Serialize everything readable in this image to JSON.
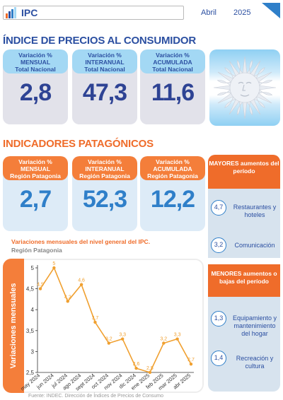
{
  "header": {
    "title": "IPC",
    "month": "Abril",
    "year": "2025"
  },
  "national": {
    "heading": "ÍNDICE DE PRECIOS AL CONSUMIDOR",
    "cards": [
      {
        "line1": "Variación %",
        "line2": "MENSUAL",
        "line3": "Total Nacional",
        "value": "2,8"
      },
      {
        "line1": "Variación %",
        "line2": "INTERANUAL",
        "line3": "Total Nacional",
        "value": "47,3"
      },
      {
        "line1": "Variación %",
        "line2": "ACUMULADA",
        "line3": "Total Nacional",
        "value": "11,6"
      }
    ]
  },
  "patagonia": {
    "heading": "INDICADORES PATAGÓNICOS",
    "cards": [
      {
        "line1": "Variación %",
        "line2": "MENSUAL",
        "line3": "Región Patagonia",
        "value": "2,7"
      },
      {
        "line1": "Variación %",
        "line2": "INTERANUAL",
        "line3": "Región Patagonia",
        "value": "52,3"
      },
      {
        "line1": "Variación %",
        "line2": "ACUMULADA",
        "line3": "Región Patagonia",
        "value": "12,2"
      }
    ]
  },
  "mayores": {
    "title": "MAYORES aumentos del período",
    "items": [
      {
        "value": "4,7",
        "label": "Restaurantes y hoteles"
      },
      {
        "value": "3,2",
        "label": "Comunicación"
      }
    ]
  },
  "menores": {
    "title": "MENORES aumentos o bajas del período",
    "items": [
      {
        "value": "1,3",
        "label": "Equipamiento y mantenimiento del hogar"
      },
      {
        "value": "1,4",
        "label": "Recreación y cultura"
      }
    ]
  },
  "colors": {
    "blue": "#2b4fa1",
    "orange": "#ef6c2a",
    "line": "#f0a030"
  },
  "chart_data": {
    "type": "line",
    "title": "Variaciones mensuales del nivel general del IPC.",
    "subtitle": "Región Patagonia",
    "ylabel": "Variaciones mensuales",
    "ylim": [
      2.5,
      5
    ],
    "yticks": [
      "2,5",
      "3",
      "3,5",
      "4",
      "4,5",
      "5"
    ],
    "categories": [
      "may 2024",
      "jun 2024",
      "jul 2024",
      "ago 2024",
      "sept 2024",
      "oct 2024",
      "nov 2024",
      "dic 2024",
      "ene 2025",
      "feb 2025",
      "mar 2025",
      "abr 2025"
    ],
    "values": [
      4.5,
      5.0,
      4.2,
      4.6,
      3.7,
      3.2,
      3.3,
      2.6,
      2.5,
      3.2,
      3.3,
      2.7
    ],
    "value_labels": [
      "4,5",
      "5",
      "4,2",
      "4,6",
      "3,7",
      "3,2",
      "3,3",
      "2,6",
      "2,5",
      "3,2",
      "3,3",
      "2,7"
    ],
    "grid": false
  },
  "source": "Fuente: INDEC. Dirección de Índices de Precios de Consumo"
}
